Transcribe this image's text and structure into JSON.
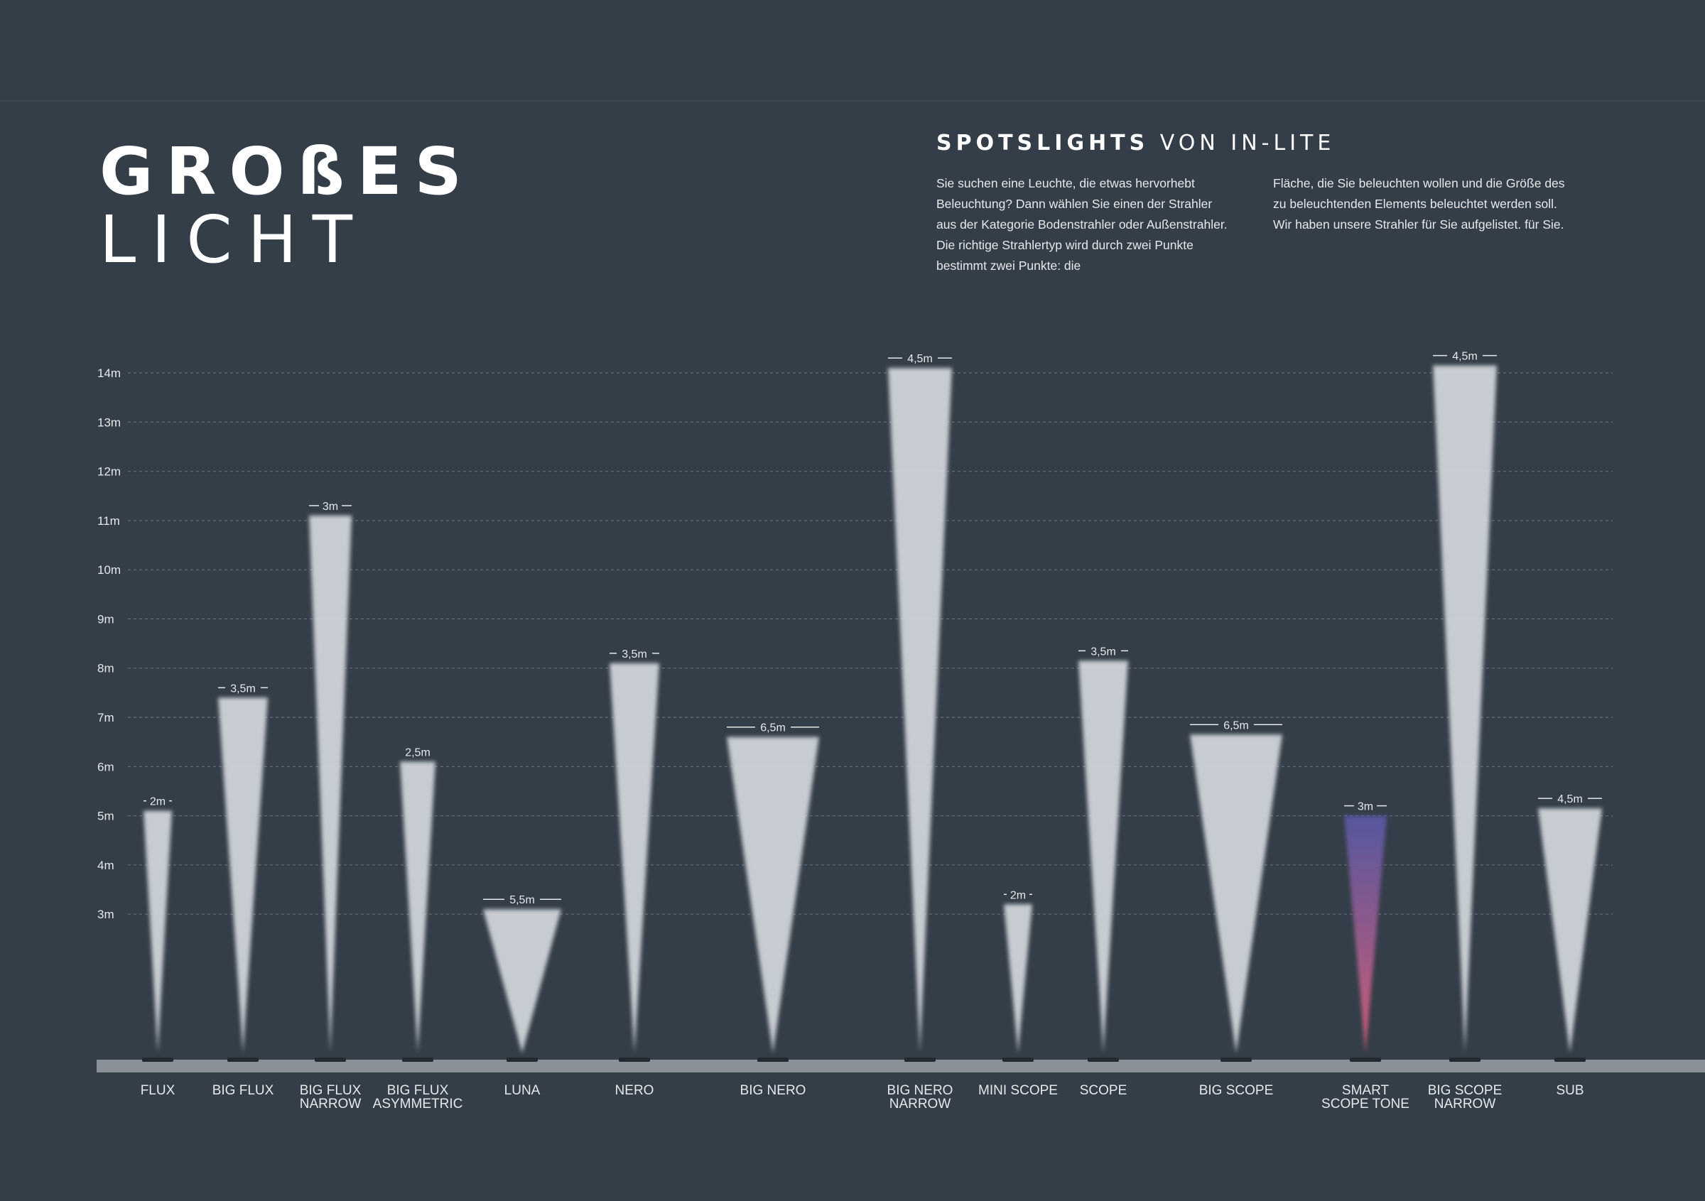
{
  "title": {
    "line1": "GROßES",
    "line2": "LICHT"
  },
  "heading": {
    "bold": "SPOTSLIGHTS",
    "rest": "VON IN-LITE"
  },
  "intro": {
    "col1": "Sie suchen eine Leuchte, die etwas hervorhebt Beleuchtung? Dann wählen Sie einen der Strahler aus der Kategorie Bodenstrahler oder Außenstrahler. Die richtige Strahlertyp wird durch zwei Punkte bestimmt zwei Punkte: die",
    "col2": "Fläche, die Sie beleuchten wollen und die Größe des zu beleuchtenden Elements beleuchtet werden soll. Wir haben unsere Strahler für Sie aufgelistet. für Sie."
  },
  "colors": {
    "background": "#343e48",
    "beam": "#d4d8de",
    "ground": "#8a9098",
    "fixture": "#22292f",
    "tone_top": "#5a5aa8",
    "tone_bottom": "#e0607a"
  },
  "chart_data": {
    "type": "bar",
    "ylabel": "",
    "ylim": [
      0,
      14
    ],
    "yticks": [
      {
        "value": 3,
        "label": "3m"
      },
      {
        "value": 4,
        "label": "4m"
      },
      {
        "value": 5,
        "label": "5m"
      },
      {
        "value": 6,
        "label": "6m"
      },
      {
        "value": 7,
        "label": "7m"
      },
      {
        "value": 8,
        "label": "8m"
      },
      {
        "value": 9,
        "label": "9m"
      },
      {
        "value": 10,
        "label": "10m"
      },
      {
        "value": 11,
        "label": "11m"
      },
      {
        "value": 12,
        "label": "12m"
      },
      {
        "value": 13,
        "label": "13m"
      },
      {
        "value": 14,
        "label": "14m"
      }
    ],
    "grid": true,
    "bars": [
      {
        "name": [
          "FLUX"
        ],
        "height": 5.1,
        "width": 2,
        "width_label": "2m"
      },
      {
        "name": [
          "BIG FLUX"
        ],
        "height": 7.4,
        "width": 3.5,
        "width_label": "3,5m"
      },
      {
        "name": [
          "BIG FLUX",
          "NARROW"
        ],
        "height": 11.1,
        "width": 3,
        "width_label": "3m"
      },
      {
        "name": [
          "BIG FLUX",
          "ASYMMETRIC"
        ],
        "height": 6.1,
        "width": 2.5,
        "width_label": "2,5m"
      },
      {
        "name": [
          "LUNA"
        ],
        "height": 3.1,
        "width": 5.5,
        "width_label": "5,5m"
      },
      {
        "name": [
          "NERO"
        ],
        "height": 8.1,
        "width": 3.5,
        "width_label": "3,5m"
      },
      {
        "name": [
          "BIG NERO"
        ],
        "height": 6.6,
        "width": 6.5,
        "width_label": "6,5m"
      },
      {
        "name": [
          "BIG NERO",
          "NARROW"
        ],
        "height": 14.1,
        "width": 4.5,
        "width_label": "4,5m"
      },
      {
        "name": [
          "MINI SCOPE"
        ],
        "height": 3.2,
        "width": 2,
        "width_label": "2m"
      },
      {
        "name": [
          "SCOPE"
        ],
        "height": 8.15,
        "width": 3.5,
        "width_label": "3,5m"
      },
      {
        "name": [
          "BIG SCOPE"
        ],
        "height": 6.65,
        "width": 6.5,
        "width_label": "6,5m"
      },
      {
        "name": [
          "SMART",
          "SCOPE TONE"
        ],
        "height": 5.0,
        "width": 3,
        "width_label": "3m"
      },
      {
        "name": [
          "BIG SCOPE",
          "NARROW"
        ],
        "height": 14.15,
        "width": 4.5,
        "width_label": "4,5m"
      },
      {
        "name": [
          "SUB"
        ],
        "height": 5.15,
        "width": 4.5,
        "width_label": "4,5m"
      }
    ]
  }
}
